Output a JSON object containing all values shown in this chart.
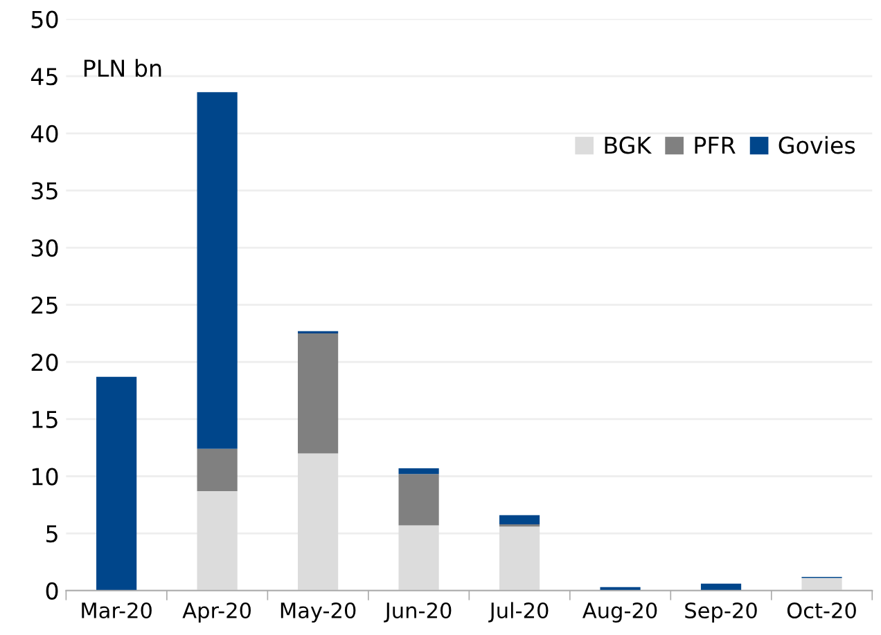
{
  "chart_data": {
    "type": "bar",
    "stacked": true,
    "categories": [
      "Mar-20",
      "Apr-20",
      "May-20",
      "Jun-20",
      "Jul-20",
      "Aug-20",
      "Sep-20",
      "Oct-20"
    ],
    "series": [
      {
        "name": "BGK",
        "color": "#dcdcdc",
        "values": [
          0,
          8.7,
          12.0,
          5.7,
          5.6,
          0,
          0,
          1.1
        ]
      },
      {
        "name": "PFR",
        "color": "#808080",
        "values": [
          0,
          3.7,
          10.5,
          4.5,
          0.2,
          0,
          0,
          0
        ]
      },
      {
        "name": "Govies",
        "color": "#00468b",
        "values": [
          18.7,
          31.2,
          0.2,
          0.5,
          0.8,
          0.3,
          0.6,
          0.1
        ]
      }
    ],
    "annotations": [
      "PLN bn"
    ],
    "ylim": [
      0,
      50
    ],
    "yticks": [
      0,
      5,
      10,
      15,
      20,
      25,
      30,
      35,
      40,
      45,
      50
    ],
    "grid": "y",
    "legend": "top right"
  }
}
